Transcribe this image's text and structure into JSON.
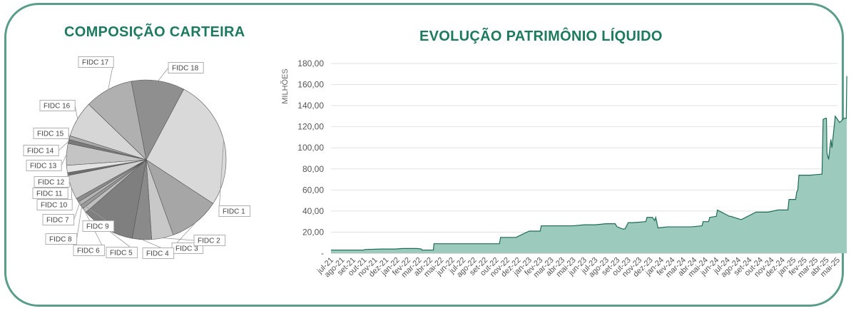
{
  "colors": {
    "border": "#5a9e8a",
    "title": "#1e7a5e",
    "area_fill": "#9ccbbe",
    "area_line": "#1f6b57"
  },
  "chart_data": [
    {
      "type": "pie",
      "title": "COMPOSIÇÃO CARTEIRA",
      "categories": [
        "FIDC 1",
        "FIDC 3",
        "FIDC 2",
        "FIDC 4",
        "FIDC 5",
        "FIDC 6",
        "FIDC 8",
        "FIDC 7",
        "FIDC 9",
        "FIDC 10",
        "FIDC 11",
        "FIDC 12",
        "FIDC 13",
        "FIDC 14",
        "FIDC 15",
        "FIDC 16",
        "FIDC 17",
        "FIDC 18"
      ],
      "values": [
        27.0,
        10.5,
        4.5,
        4.0,
        11.0,
        1.0,
        0.8,
        0.8,
        0.8,
        5.0,
        0.6,
        1.5,
        4.5,
        0.8,
        0.8,
        7.5,
        10.0,
        11.0
      ]
    },
    {
      "type": "area",
      "title": "EVOLUÇÃO PATRIMÔNIO LÍQUIDO",
      "ylabel": "MILHÕES",
      "ylim": [
        0,
        180
      ],
      "yticks": [
        "-",
        "20,00",
        "40,00",
        "60,00",
        "80,00",
        "100,00",
        "120,00",
        "140,00",
        "160,00",
        "180,00"
      ],
      "categories": [
        "jul-21",
        "ago-21",
        "set-21",
        "out-21",
        "nov-21",
        "dez-21",
        "jan-22",
        "fev-22",
        "mar-22",
        "abr-22",
        "mai-22",
        "jun-22",
        "jul-22",
        "ago-22",
        "set-22",
        "out-22",
        "nov-22",
        "dez-22",
        "jan-23",
        "fev-23",
        "mar-23",
        "abr-23",
        "mai-23",
        "jun-23",
        "jul-23",
        "ago-23",
        "set-23",
        "out-23",
        "nov-23",
        "dez-23",
        "jan-24",
        "fev-24",
        "mar-24",
        "abr-24",
        "mai-24",
        "jun-24",
        "jul-24",
        "ago-24",
        "set-24",
        "out-24",
        "nov-24",
        "dez-24",
        "jan-25",
        "fev-25",
        "mar-25",
        "abr-25",
        "mai-25"
      ],
      "x": [
        0,
        1,
        1.4,
        1.45,
        3,
        3.05,
        4.5,
        5.8,
        6.5,
        7.8,
        8.2,
        8.25,
        9,
        9.3,
        9.35,
        12,
        14,
        15.3,
        15.4,
        16.7,
        16.8,
        18,
        19,
        19.1,
        21,
        22,
        23,
        24,
        25,
        25.8,
        26,
        26.5,
        26.7,
        27,
        27.4,
        28.6,
        28.7,
        29.2,
        29.4,
        29.5,
        29.7,
        30.5,
        31.5,
        32.2,
        32.3,
        32.7,
        33.7,
        33.8,
        34.3,
        34.4,
        35,
        35.1,
        36.2,
        36.3,
        37.2,
        37.3,
        38.6,
        38.7,
        39.6,
        39.7,
        40.6,
        40.7,
        41.5,
        41.6,
        42.2,
        42.3,
        42.4,
        42.5,
        42.6,
        43.5,
        44.5,
        44.6,
        44.7,
        44.9,
        45.0,
        45.05,
        45.2,
        45.4,
        45.5,
        45.8,
        46.2,
        46.3,
        46.6,
        46.7,
        46.8,
        46.85
      ],
      "values": [
        3,
        3,
        3,
        3,
        3,
        3.5,
        4,
        4,
        4.5,
        4.5,
        4,
        3,
        3,
        3,
        9,
        9,
        9,
        9,
        15,
        15,
        15,
        21,
        21,
        26,
        26,
        26,
        27,
        27,
        28,
        28,
        25,
        23,
        23,
        29,
        29,
        30,
        34,
        34,
        31,
        34,
        24,
        25,
        25,
        25,
        25,
        25,
        26,
        30,
        30,
        34,
        35,
        41,
        35,
        35,
        32,
        32,
        39,
        39,
        39,
        39,
        41,
        41,
        41,
        51,
        51,
        58,
        60,
        74,
        74,
        74,
        75,
        75,
        127,
        128,
        128,
        95,
        89,
        108,
        100,
        130,
        124,
        125,
        128,
        128,
        128,
        168
      ]
    }
  ]
}
